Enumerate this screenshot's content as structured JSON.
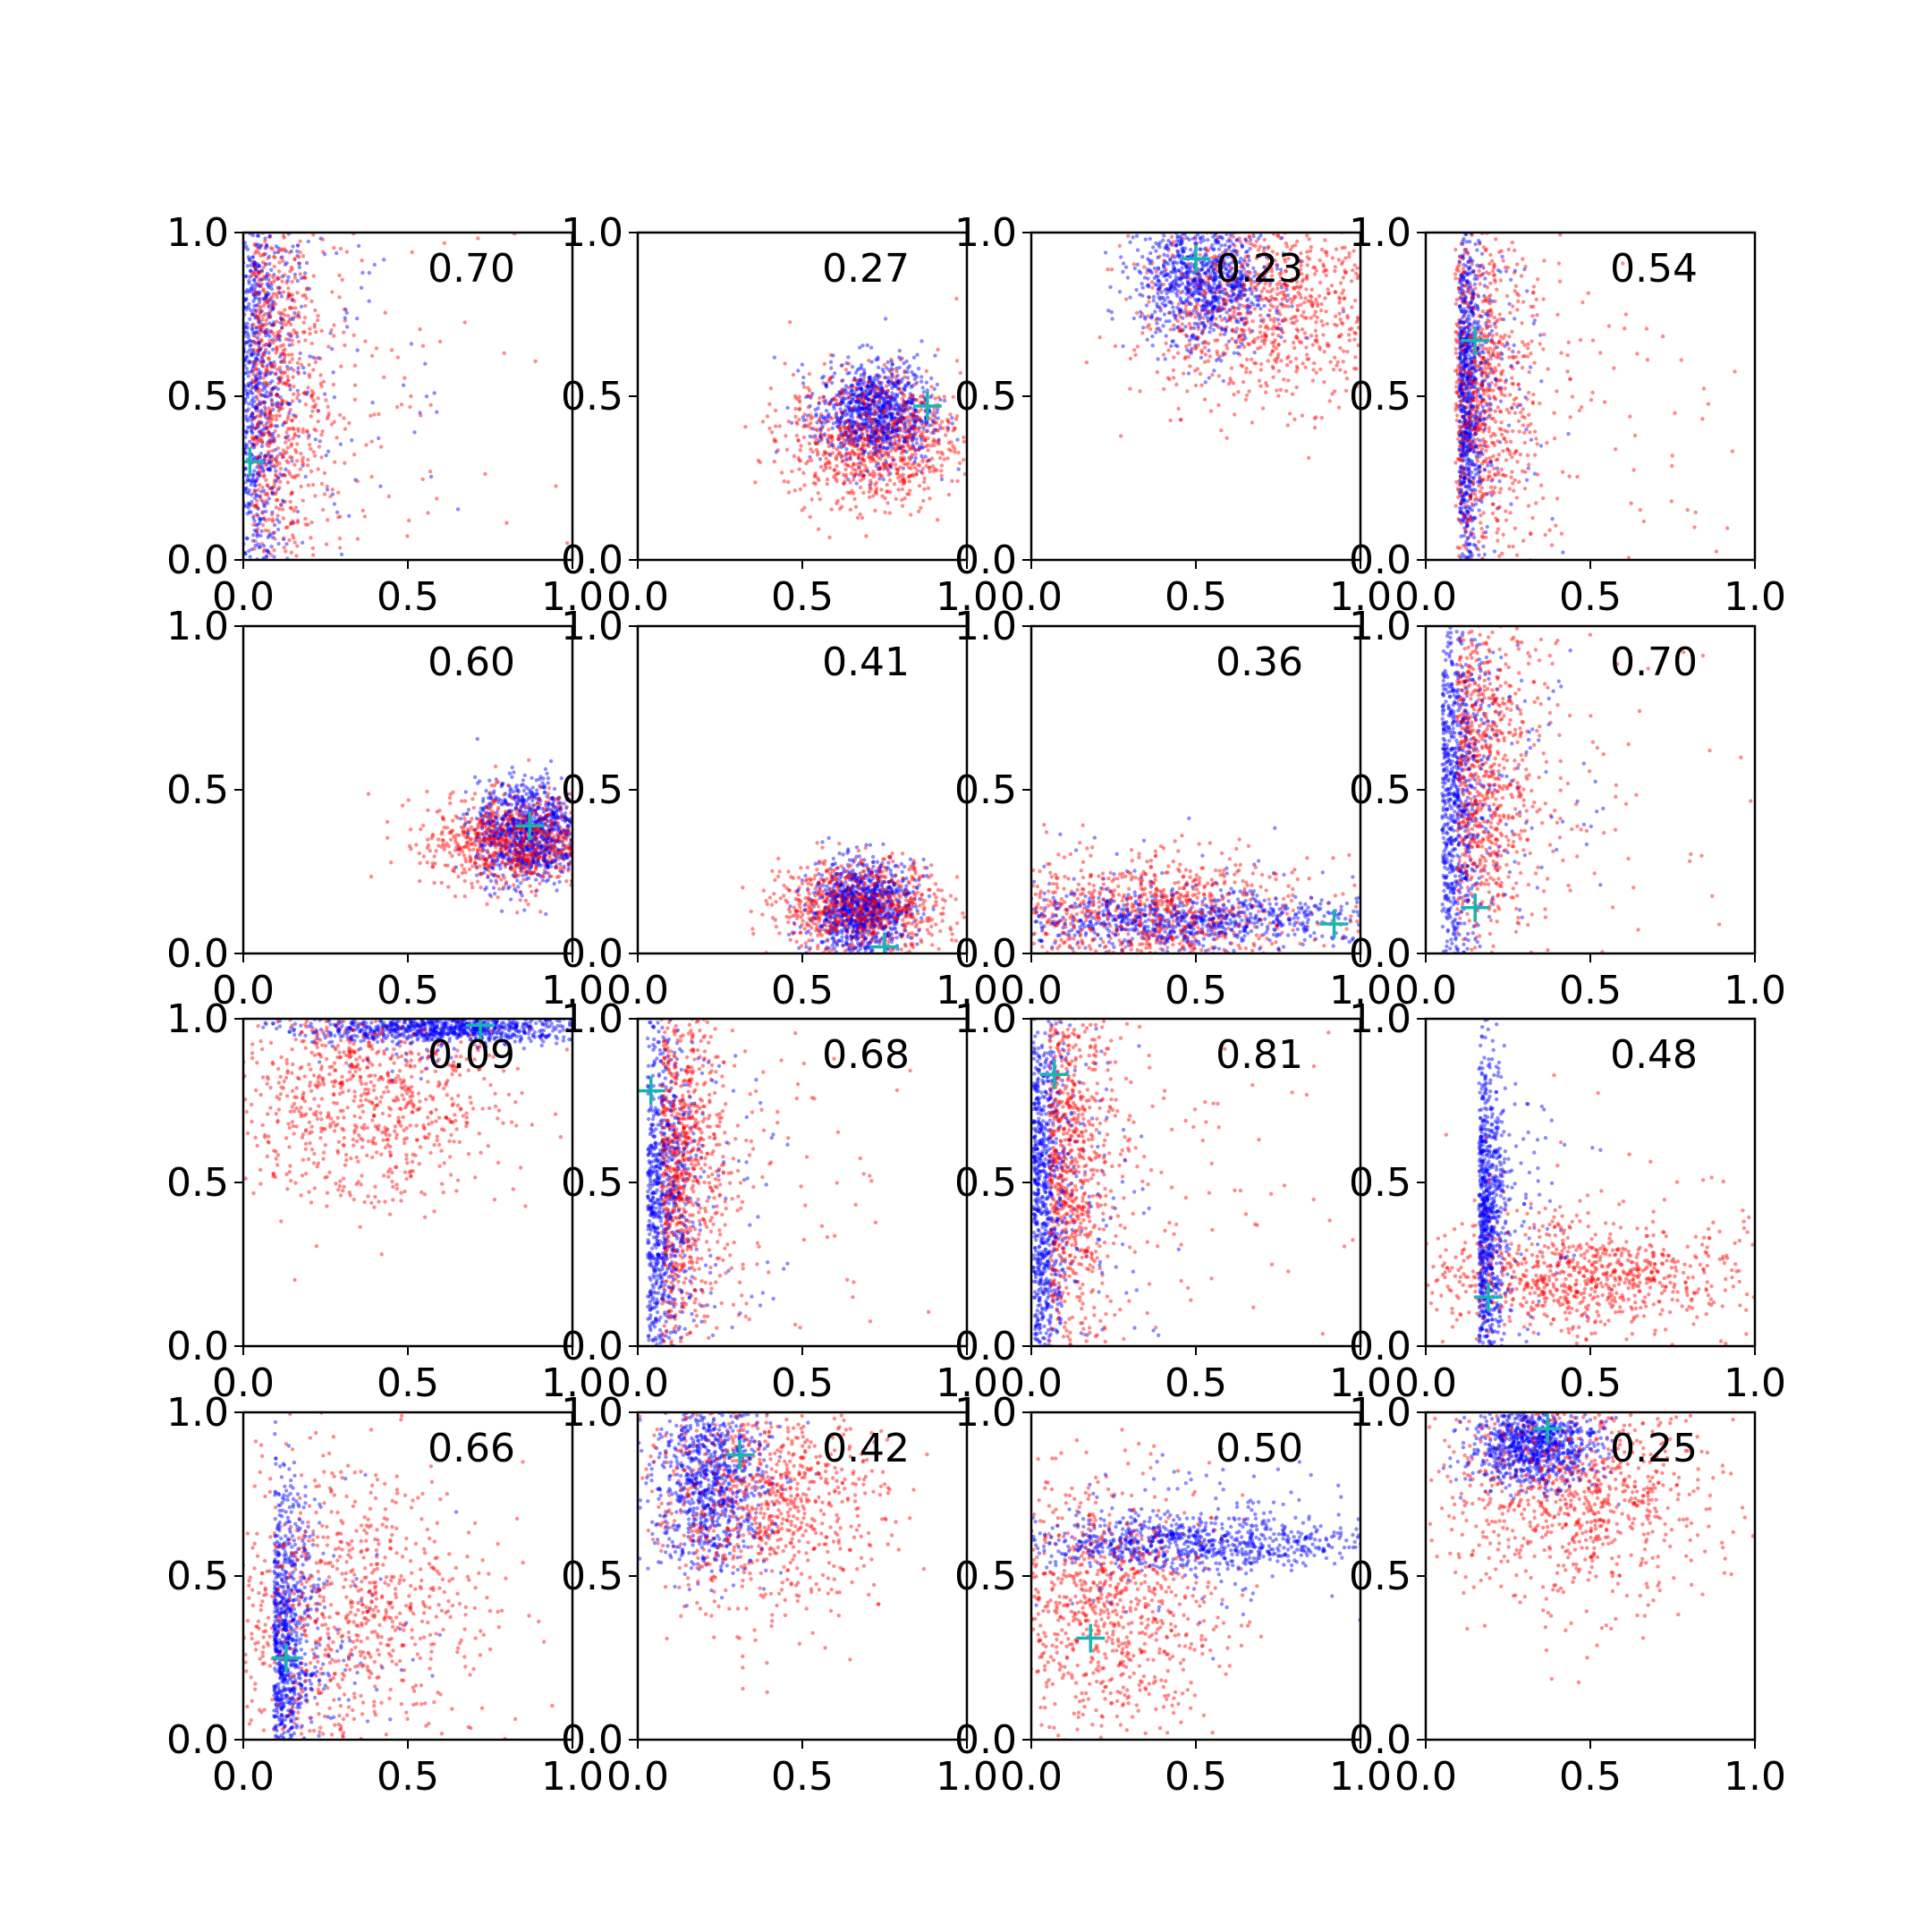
{
  "chart_data": {
    "type": "scatter",
    "rows": 4,
    "cols": 4,
    "xlim": [
      0,
      1
    ],
    "ylim": [
      0,
      1
    ],
    "xticks": [
      "0.0",
      "0.5",
      "1.0"
    ],
    "yticks": [
      "0.0",
      "0.5",
      "1.0"
    ],
    "colors": {
      "series_a": "#0000ff",
      "series_b": "#ff0000",
      "marker": "#17b5b0"
    },
    "panels": [
      {
        "score": "0.70",
        "marker": [
          0.02,
          0.3
        ],
        "blue": {
          "dist": "vband",
          "cx": 0.03,
          "sx": 0.12,
          "cy": 0.55,
          "sy": 0.35
        },
        "red": {
          "dist": "vband",
          "cx": 0.08,
          "sx": 0.18,
          "cy": 0.55,
          "sy": 0.35
        }
      },
      {
        "score": "0.27",
        "marker": [
          0.88,
          0.47
        ],
        "blue": {
          "dist": "blob",
          "cx": 0.72,
          "sx": 0.09,
          "cy": 0.45,
          "sy": 0.08
        },
        "red": {
          "dist": "blob",
          "cx": 0.72,
          "sx": 0.13,
          "cy": 0.37,
          "sy": 0.1
        }
      },
      {
        "score": "0.23",
        "marker": [
          0.5,
          0.92
        ],
        "blue": {
          "dist": "blob",
          "cx": 0.52,
          "sx": 0.1,
          "cy": 0.85,
          "sy": 0.1
        },
        "red": {
          "dist": "blob",
          "cx": 0.72,
          "sx": 0.2,
          "cy": 0.78,
          "sy": 0.15
        }
      },
      {
        "score": "0.54",
        "marker": [
          0.15,
          0.67
        ],
        "blue": {
          "dist": "vband",
          "cx": 0.12,
          "sx": 0.06,
          "cy": 0.52,
          "sy": 0.28
        },
        "red": {
          "dist": "vband",
          "cx": 0.15,
          "sx": 0.2,
          "cy": 0.5,
          "sy": 0.28
        }
      },
      {
        "score": "0.60",
        "marker": [
          0.87,
          0.39
        ],
        "blue": {
          "dist": "blob",
          "cx": 0.87,
          "sx": 0.08,
          "cy": 0.37,
          "sy": 0.08
        },
        "red": {
          "dist": "blob",
          "cx": 0.82,
          "sx": 0.13,
          "cy": 0.34,
          "sy": 0.07
        }
      },
      {
        "score": "0.41",
        "marker": [
          0.75,
          0.02
        ],
        "blue": {
          "dist": "blob",
          "cx": 0.68,
          "sx": 0.08,
          "cy": 0.14,
          "sy": 0.07
        },
        "red": {
          "dist": "blob",
          "cx": 0.68,
          "sx": 0.12,
          "cy": 0.14,
          "sy": 0.07
        }
      },
      {
        "score": "0.36",
        "marker": [
          0.92,
          0.09
        ],
        "blue": {
          "dist": "hband",
          "cx": 0.45,
          "sx": 0.28,
          "cy": 0.1,
          "sy": 0.04
        },
        "red": {
          "dist": "blob",
          "cx": 0.35,
          "sx": 0.25,
          "cy": 0.12,
          "sy": 0.09
        }
      },
      {
        "score": "0.70",
        "marker": [
          0.15,
          0.14
        ],
        "blue": {
          "dist": "vband",
          "cx": 0.08,
          "sx": 0.1,
          "cy": 0.48,
          "sy": 0.32
        },
        "red": {
          "dist": "vband",
          "cx": 0.15,
          "sx": 0.18,
          "cy": 0.55,
          "sy": 0.3
        }
      },
      {
        "score": "0.09",
        "marker": [
          0.72,
          0.98
        ],
        "blue": {
          "dist": "hband",
          "cx": 0.62,
          "sx": 0.22,
          "cy": 0.97,
          "sy": 0.02
        },
        "red": {
          "dist": "blob",
          "cx": 0.38,
          "sx": 0.2,
          "cy": 0.78,
          "sy": 0.17
        }
      },
      {
        "score": "0.68",
        "marker": [
          0.04,
          0.78
        ],
        "blue": {
          "dist": "vband",
          "cx": 0.06,
          "sx": 0.1,
          "cy": 0.42,
          "sy": 0.3
        },
        "red": {
          "dist": "vband",
          "cx": 0.12,
          "sx": 0.16,
          "cy": 0.55,
          "sy": 0.28
        }
      },
      {
        "score": "0.81",
        "marker": [
          0.07,
          0.83
        ],
        "blue": {
          "dist": "vband",
          "cx": 0.03,
          "sx": 0.08,
          "cy": 0.45,
          "sy": 0.32
        },
        "red": {
          "dist": "vband",
          "cx": 0.1,
          "sx": 0.15,
          "cy": 0.55,
          "sy": 0.3
        }
      },
      {
        "score": "0.48",
        "marker": [
          0.19,
          0.15
        ],
        "blue": {
          "dist": "vband",
          "cx": 0.18,
          "sx": 0.06,
          "cy": 0.38,
          "sy": 0.25
        },
        "red": {
          "dist": "hband",
          "cx": 0.48,
          "sx": 0.25,
          "cy": 0.22,
          "sy": 0.08
        }
      },
      {
        "score": "0.66",
        "marker": [
          0.13,
          0.25
        ],
        "blue": {
          "dist": "vband",
          "cx": 0.12,
          "sx": 0.09,
          "cy": 0.28,
          "sy": 0.25
        },
        "red": {
          "dist": "blob",
          "cx": 0.3,
          "sx": 0.22,
          "cy": 0.38,
          "sy": 0.22
        }
      },
      {
        "score": "0.42",
        "marker": [
          0.31,
          0.87
        ],
        "blue": {
          "dist": "blob",
          "cx": 0.22,
          "sx": 0.09,
          "cy": 0.8,
          "sy": 0.14
        },
        "red": {
          "dist": "blob",
          "cx": 0.38,
          "sx": 0.18,
          "cy": 0.72,
          "sy": 0.17
        }
      },
      {
        "score": "0.50",
        "marker": [
          0.18,
          0.31
        ],
        "blue": {
          "dist": "hband",
          "cx": 0.5,
          "sx": 0.26,
          "cy": 0.6,
          "sy": 0.04
        },
        "red": {
          "dist": "blob",
          "cx": 0.22,
          "sx": 0.17,
          "cy": 0.4,
          "sy": 0.2
        }
      },
      {
        "score": "0.25",
        "marker": [
          0.37,
          0.95
        ],
        "blue": {
          "dist": "blob",
          "cx": 0.33,
          "sx": 0.1,
          "cy": 0.9,
          "sy": 0.06
        },
        "red": {
          "dist": "blob",
          "cx": 0.45,
          "sx": 0.2,
          "cy": 0.75,
          "sy": 0.17
        }
      }
    ]
  }
}
